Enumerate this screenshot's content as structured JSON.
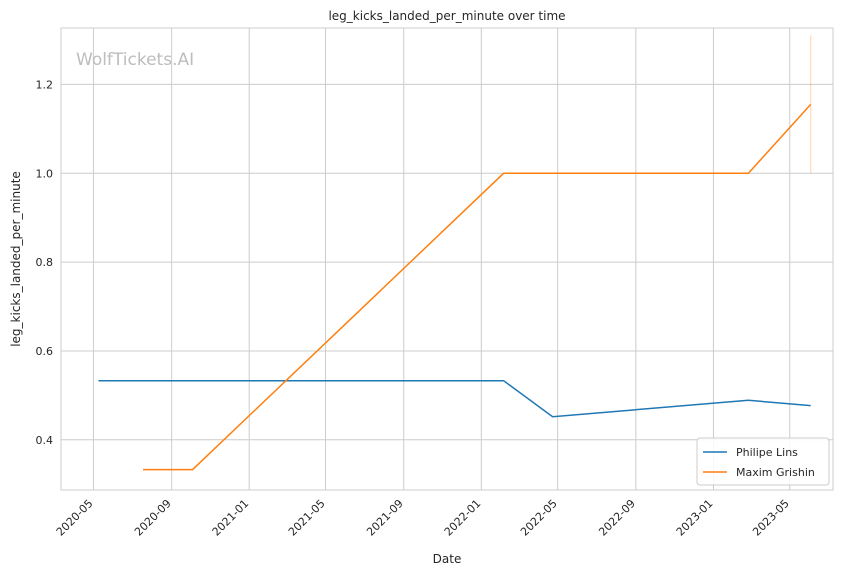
{
  "chart_data": {
    "type": "line",
    "title": "leg_kicks_landed_per_minute over time",
    "xlabel": "Date",
    "ylabel": "leg_kicks_landed_per_minute",
    "watermark": "WolfTickets.AI",
    "xlim": [
      "2020-03-11",
      "2023-07-08"
    ],
    "ylim": [
      0.287,
      1.327
    ],
    "x_ticks": [
      "2020-05",
      "2020-09",
      "2021-01",
      "2021-05",
      "2021-09",
      "2022-01",
      "2022-05",
      "2022-09",
      "2023-01",
      "2023-05"
    ],
    "y_ticks": [
      0.4,
      0.6,
      0.8,
      1.0,
      1.2
    ],
    "y_tick_labels": [
      "0.4",
      "0.6",
      "0.8",
      "1.0",
      "1.2"
    ],
    "grid": true,
    "legend_position": "bottom-right",
    "series": [
      {
        "name": "Philipe Lins",
        "color": "#1f77b4",
        "x": [
          "2020-05-09",
          "2022-02-05",
          "2022-04-23",
          "2023-02-25",
          "2023-06-03"
        ],
        "y": [
          0.533,
          0.533,
          0.452,
          0.489,
          0.477
        ]
      },
      {
        "name": "Maxim Grishin",
        "color": "#ff7f0e",
        "x": [
          "2020-07-18",
          "2020-10-04",
          "2022-02-05",
          "2023-02-25",
          "2023-06-03"
        ],
        "y": [
          0.333,
          0.333,
          1.0,
          1.0,
          1.155
        ]
      }
    ],
    "error_bars": [
      {
        "series": "Maxim Grishin",
        "x": "2023-06-03",
        "low": 1.0,
        "high": 1.31
      }
    ]
  }
}
